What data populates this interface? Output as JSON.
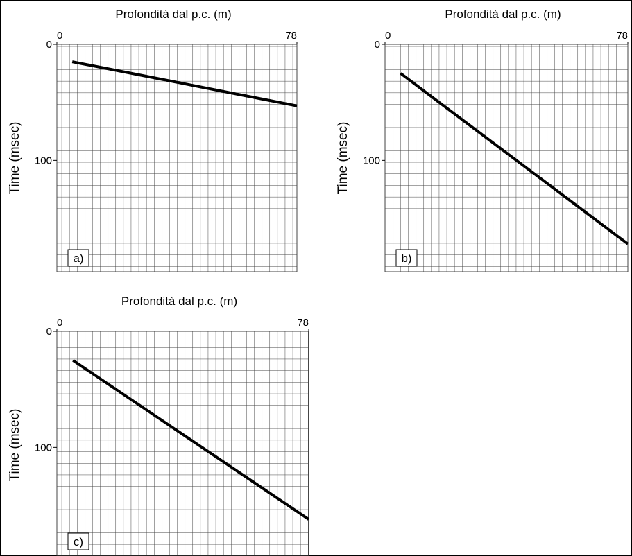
{
  "chart_data": [
    {
      "type": "line",
      "title": "Profondità dal p.c. (m)",
      "y_label": "Time (msec)",
      "panel_label": "a)",
      "xlim": [
        0,
        78
      ],
      "ylim": [
        0,
        196
      ],
      "xticks": [
        0,
        78
      ],
      "yticks": [
        0,
        100
      ],
      "x": [
        5,
        78
      ],
      "values": [
        15,
        53
      ],
      "color": "#000000"
    },
    {
      "type": "line",
      "title": "Profondità dal p.c. (m)",
      "y_label": "Time (msec)",
      "panel_label": "b)",
      "xlim": [
        0,
        78
      ],
      "ylim": [
        0,
        196
      ],
      "xticks": [
        0,
        78
      ],
      "yticks": [
        0,
        100
      ],
      "x": [
        5,
        78
      ],
      "values": [
        25,
        172
      ],
      "color": "#000000"
    },
    {
      "type": "line",
      "title": "Profondità dal p.c. (m)",
      "y_label": "Time (msec)",
      "panel_label": "c)",
      "xlim": [
        0,
        78
      ],
      "ylim": [
        0,
        196
      ],
      "xticks": [
        0,
        78
      ],
      "yticks": [
        0,
        100
      ],
      "x": [
        5,
        78
      ],
      "values": [
        25,
        162
      ],
      "color": "#000000"
    }
  ]
}
